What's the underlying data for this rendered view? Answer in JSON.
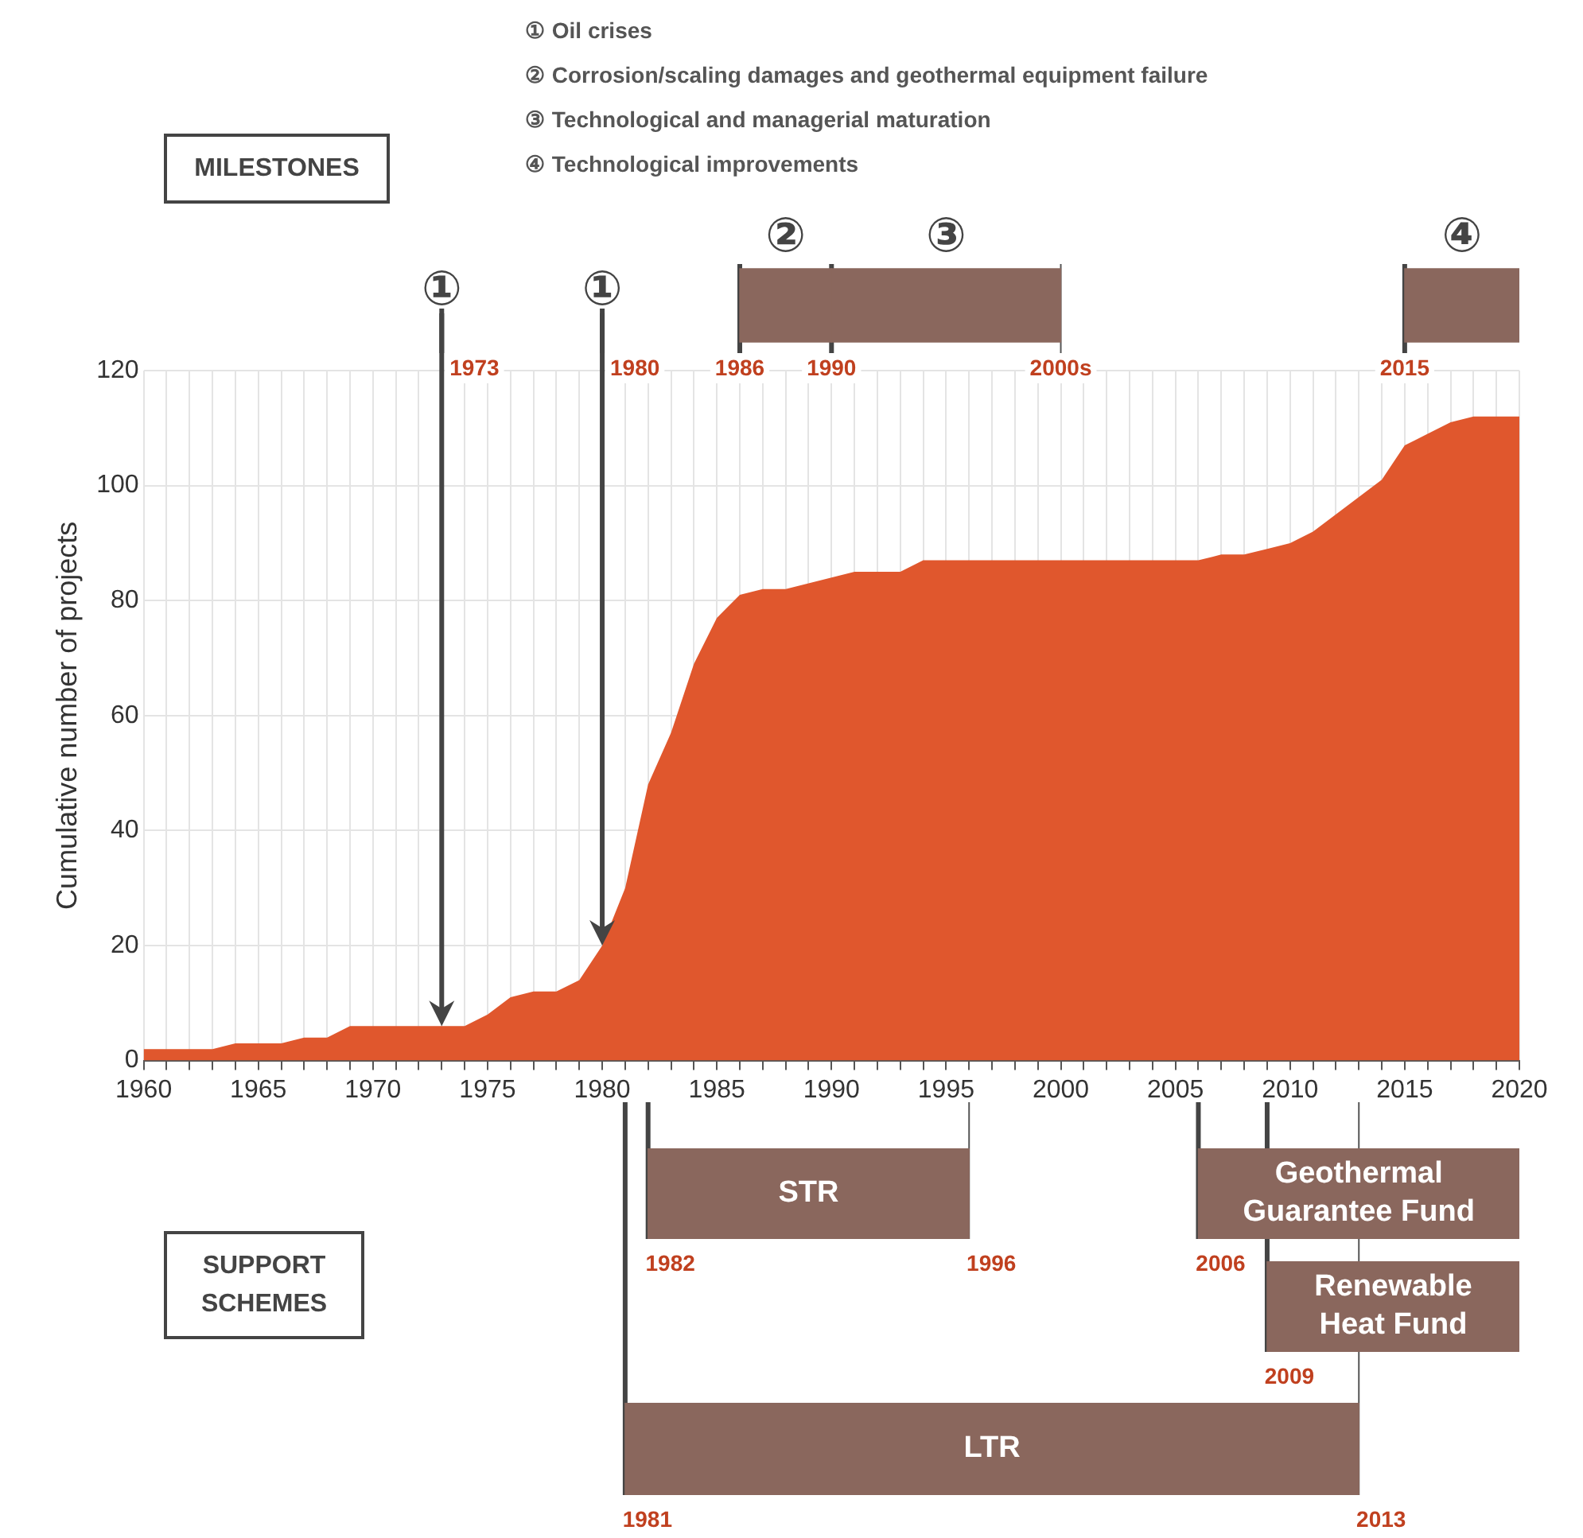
{
  "chart_data": [
    {
      "type": "bar",
      "orientation": "horizontal",
      "categories": [
        null
      ],
      "xlim": [
        1960,
        2020
      ],
      "tick_labels": false,
      "legend": false,
      "series": [
        {
          "name": "②",
          "color": "#8a675d",
          "values": [
            4
          ],
          "base": [
            1986
          ]
        },
        {
          "name": "③",
          "color": "#8a675d",
          "values": [
            10
          ],
          "base": [
            1990
          ]
        },
        {
          "name": "④",
          "color": "#8a675d",
          "values": [
            5
          ],
          "base": [
            2015
          ]
        }
      ],
      "ref_lines": [
        {
          "axis": "x",
          "value": 1973,
          "label": "1973"
        },
        {
          "axis": "x",
          "value": 1980,
          "label": "1980"
        },
        {
          "axis": "x",
          "value": 1986,
          "label": "1986"
        },
        {
          "axis": "x",
          "value": 1990,
          "label": "1990"
        },
        {
          "axis": "x",
          "value": 2000,
          "label": "2000s"
        },
        {
          "axis": "x",
          "value": 2015,
          "label": "2015"
        }
      ],
      "annotations": [
        "MILESTONES",
        "① Oil crises",
        "② Corrosion/scaling damages and geothermal equipment failure",
        "③ Technological and managerial maturation",
        "④ Technological improvements"
      ]
    },
    {
      "type": "area",
      "ylabel": "Cumulative number of projects",
      "color": "#e0572d",
      "x": [
        1960,
        1961,
        1962,
        1963,
        1964,
        1965,
        1966,
        1967,
        1968,
        1969,
        1970,
        1971,
        1972,
        1973,
        1974,
        1975,
        1976,
        1977,
        1978,
        1979,
        1980,
        1981,
        1982,
        1983,
        1984,
        1985,
        1986,
        1987,
        1988,
        1989,
        1990,
        1991,
        1992,
        1993,
        1994,
        1995,
        1996,
        1997,
        1998,
        1999,
        2000,
        2001,
        2002,
        2003,
        2004,
        2005,
        2006,
        2007,
        2008,
        2009,
        2010,
        2011,
        2012,
        2013,
        2014,
        2015,
        2016,
        2017,
        2018,
        2019,
        2020
      ],
      "values": [
        2,
        2,
        2,
        2,
        3,
        3,
        3,
        4,
        4,
        6,
        6,
        6,
        6,
        6,
        6,
        8,
        11,
        12,
        12,
        14,
        20,
        30,
        48,
        57,
        69,
        77,
        81,
        82,
        82,
        83,
        84,
        85,
        85,
        85,
        87,
        87,
        87,
        87,
        87,
        87,
        87,
        87,
        87,
        87,
        87,
        87,
        87,
        88,
        88,
        89,
        90,
        92,
        95,
        98,
        101,
        107,
        109,
        111,
        112,
        112,
        112
      ],
      "xlim": [
        1960,
        2020
      ],
      "xticks": [
        1960,
        {
          "value": 1961,
          "label": null
        },
        {
          "value": 1962,
          "label": null
        },
        {
          "value": 1963,
          "label": null
        },
        {
          "value": 1964,
          "label": null
        },
        1965,
        {
          "value": 1966,
          "label": null
        },
        {
          "value": 1967,
          "label": null
        },
        {
          "value": 1968,
          "label": null
        },
        {
          "value": 1969,
          "label": null
        },
        1970,
        {
          "value": 1971,
          "label": null
        },
        {
          "value": 1972,
          "label": null
        },
        {
          "value": 1973,
          "label": null
        },
        {
          "value": 1974,
          "label": null
        },
        1975,
        {
          "value": 1976,
          "label": null
        },
        {
          "value": 1977,
          "label": null
        },
        {
          "value": 1978,
          "label": null
        },
        {
          "value": 1979,
          "label": null
        },
        1980,
        {
          "value": 1981,
          "label": null
        },
        {
          "value": 1982,
          "label": null
        },
        {
          "value": 1983,
          "label": null
        },
        {
          "value": 1984,
          "label": null
        },
        1985,
        {
          "value": 1986,
          "label": null
        },
        {
          "value": 1987,
          "label": null
        },
        {
          "value": 1988,
          "label": null
        },
        {
          "value": 1989,
          "label": null
        },
        1990,
        {
          "value": 1991,
          "label": null
        },
        {
          "value": 1992,
          "label": null
        },
        {
          "value": 1993,
          "label": null
        },
        {
          "value": 1994,
          "label": null
        },
        1995,
        {
          "value": 1996,
          "label": null
        },
        {
          "value": 1997,
          "label": null
        },
        {
          "value": 1998,
          "label": null
        },
        {
          "value": 1999,
          "label": null
        },
        2000,
        {
          "value": 2001,
          "label": null
        },
        {
          "value": 2002,
          "label": null
        },
        {
          "value": 2003,
          "label": null
        },
        {
          "value": 2004,
          "label": null
        },
        2005,
        {
          "value": 2006,
          "label": null
        },
        {
          "value": 2007,
          "label": null
        },
        {
          "value": 2008,
          "label": null
        },
        {
          "value": 2009,
          "label": null
        },
        2010,
        {
          "value": 2011,
          "label": null
        },
        {
          "value": 2012,
          "label": null
        },
        {
          "value": 2013,
          "label": null
        },
        {
          "value": 2014,
          "label": null
        },
        2015,
        {
          "value": 2016,
          "label": null
        },
        {
          "value": 2017,
          "label": null
        },
        {
          "value": 2018,
          "label": null
        },
        {
          "value": 2019,
          "label": null
        },
        2020
      ],
      "ylim": [
        0,
        120
      ],
      "yticks": [
        0,
        20,
        40,
        60,
        80,
        100,
        120
      ],
      "grid": true,
      "annotations": [
        "①",
        "①"
      ]
    },
    {
      "type": "bar",
      "orientation": "horizontal",
      "categories": [
        null
      ],
      "xlim": [
        1960,
        2020
      ],
      "tick_labels": false,
      "legend": false,
      "series": [
        {
          "name": "STR",
          "color": "#8a675d",
          "values": [
            14
          ],
          "base": [
            1982
          ]
        },
        {
          "name": "Geothermal Guarantee Fund",
          "color": "#8a675d",
          "values": [
            14
          ],
          "base": [
            2006
          ]
        }
      ],
      "ref_lines": [
        {
          "axis": "x",
          "value": 1982,
          "label": "1982"
        },
        {
          "axis": "x",
          "value": 1996,
          "label": "1996"
        },
        {
          "axis": "x",
          "value": 2006,
          "label": "2006"
        }
      ]
    },
    {
      "type": "bar",
      "orientation": "horizontal",
      "categories": [
        null
      ],
      "xlim": [
        1960,
        2020
      ],
      "tick_labels": false,
      "legend": false,
      "series": [
        {
          "name": "Renewable Heat Fund",
          "color": "#8a675d",
          "values": [
            11
          ],
          "base": [
            2009
          ]
        }
      ],
      "ref_lines": [
        {
          "axis": "x",
          "value": 2009,
          "label": "2009"
        }
      ],
      "annotations": [
        "SUPPORT SCHEMES"
      ]
    },
    {
      "type": "bar",
      "orientation": "horizontal",
      "categories": [
        null
      ],
      "xlim": [
        1960,
        2020
      ],
      "tick_labels": false,
      "legend": false,
      "series": [
        {
          "name": "LTR",
          "color": "#8a675d",
          "values": [
            32
          ],
          "base": [
            1981
          ]
        }
      ],
      "ref_lines": [
        {
          "axis": "x",
          "value": 1981,
          "label": "1981"
        },
        {
          "axis": "x",
          "value": 2013,
          "label": "2013"
        }
      ]
    }
  ]
}
